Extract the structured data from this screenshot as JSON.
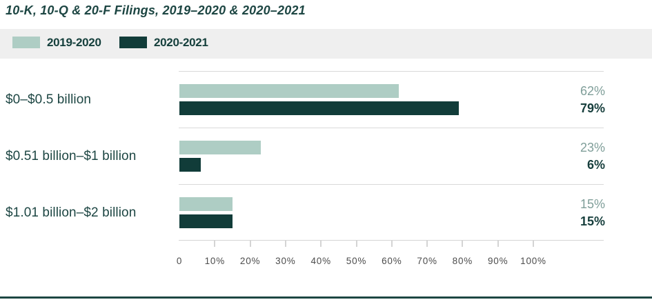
{
  "title": "10-K, 10-Q & 20-F Filings, 2019–2020 & 2020–2021",
  "legend": {
    "items": [
      {
        "label": "2019-2020",
        "color": "#aecdc4"
      },
      {
        "label": "2020-2021",
        "color": "#113c39"
      }
    ]
  },
  "chart_data": {
    "type": "bar",
    "orientation": "horizontal",
    "title": "10-K, 10-Q & 20-F Filings, 2019–2020 & 2020–2021",
    "categories": [
      "$0–$0.5 billion",
      "$0.51 billion–$1 billion",
      "$1.01 billion–$2 billion"
    ],
    "series": [
      {
        "name": "2019-2020",
        "color": "#aecdc4",
        "values": [
          62,
          23,
          15
        ],
        "labels": [
          "62%",
          "23%",
          "15%"
        ]
      },
      {
        "name": "2020-2021",
        "color": "#113c39",
        "values": [
          79,
          6,
          15
        ],
        "labels": [
          "79%",
          "6%",
          "15%"
        ]
      }
    ],
    "xlim": [
      0,
      100
    ],
    "tick_labels": [
      "0",
      "10%",
      "20%",
      "30%",
      "40%",
      "50%",
      "60%",
      "70%",
      "80%",
      "90%",
      "100%"
    ],
    "legend_position": "top",
    "grid": false
  },
  "colors": {
    "accent_dark": "#113c39",
    "accent_light": "#aecdc4",
    "text_dark": "#1d4643",
    "value_light_text": "#7f9e99",
    "legend_background": "#efefef",
    "separator_line": "#d9d9d9",
    "axis_text": "#4c4c4c"
  }
}
